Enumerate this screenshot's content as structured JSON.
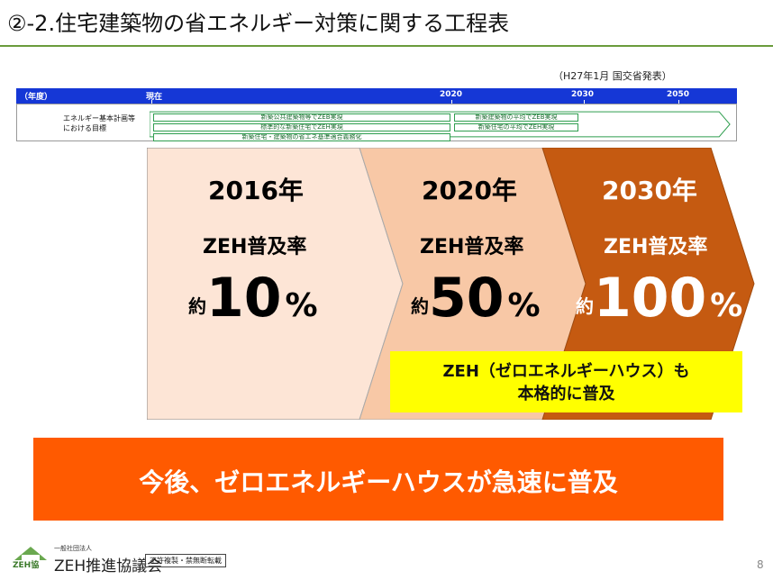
{
  "header": {
    "title": "②-2.住宅建築物の省エネルギー対策に関する工程表",
    "source": "（H27年1月 国交省発表）"
  },
  "timeline": {
    "year_label": "（年度）",
    "now_label": "現在",
    "years": [
      "2020",
      "2030",
      "2050"
    ],
    "row_label_line1": "エネルギー基本計画等",
    "row_label_line2": "における目標",
    "arrows": {
      "a1": "新築公共建築物等でZEB実現",
      "a2": "標準的な新築住宅でZEH実現",
      "a3": "新築住宅・建築物の省エネ基準適合義務化",
      "a4": "新築建築物の平均でZEB実現",
      "a5": "新築住宅の平均でZEH実現"
    }
  },
  "stages": [
    {
      "year": "2016年",
      "label": "ZEH普及率",
      "prefix": "約",
      "value": "10",
      "unit": "%",
      "fill": "#fde5d6",
      "text_color": "#000000"
    },
    {
      "year": "2020年",
      "label": "ZEH普及率",
      "prefix": "約",
      "value": "50",
      "unit": "%",
      "fill": "#f8c8a6",
      "text_color": "#000000"
    },
    {
      "year": "2030年",
      "label": "ZEH普及率",
      "prefix": "約",
      "value": "100",
      "unit": "%",
      "fill": "#c55a11",
      "text_color": "#ffffff"
    }
  ],
  "callout": {
    "line1": "ZEH（ゼロエネルギーハウス）も",
    "line2": "本格的に普及"
  },
  "banner": {
    "text": "今後、ゼロエネルギーハウスが急速に普及"
  },
  "footer": {
    "org_sub": "一般社団法人",
    "org_name": "ZEH推進協議会",
    "badge": "ZEH協",
    "note": "不許複製・禁無断転載",
    "page": "8"
  }
}
